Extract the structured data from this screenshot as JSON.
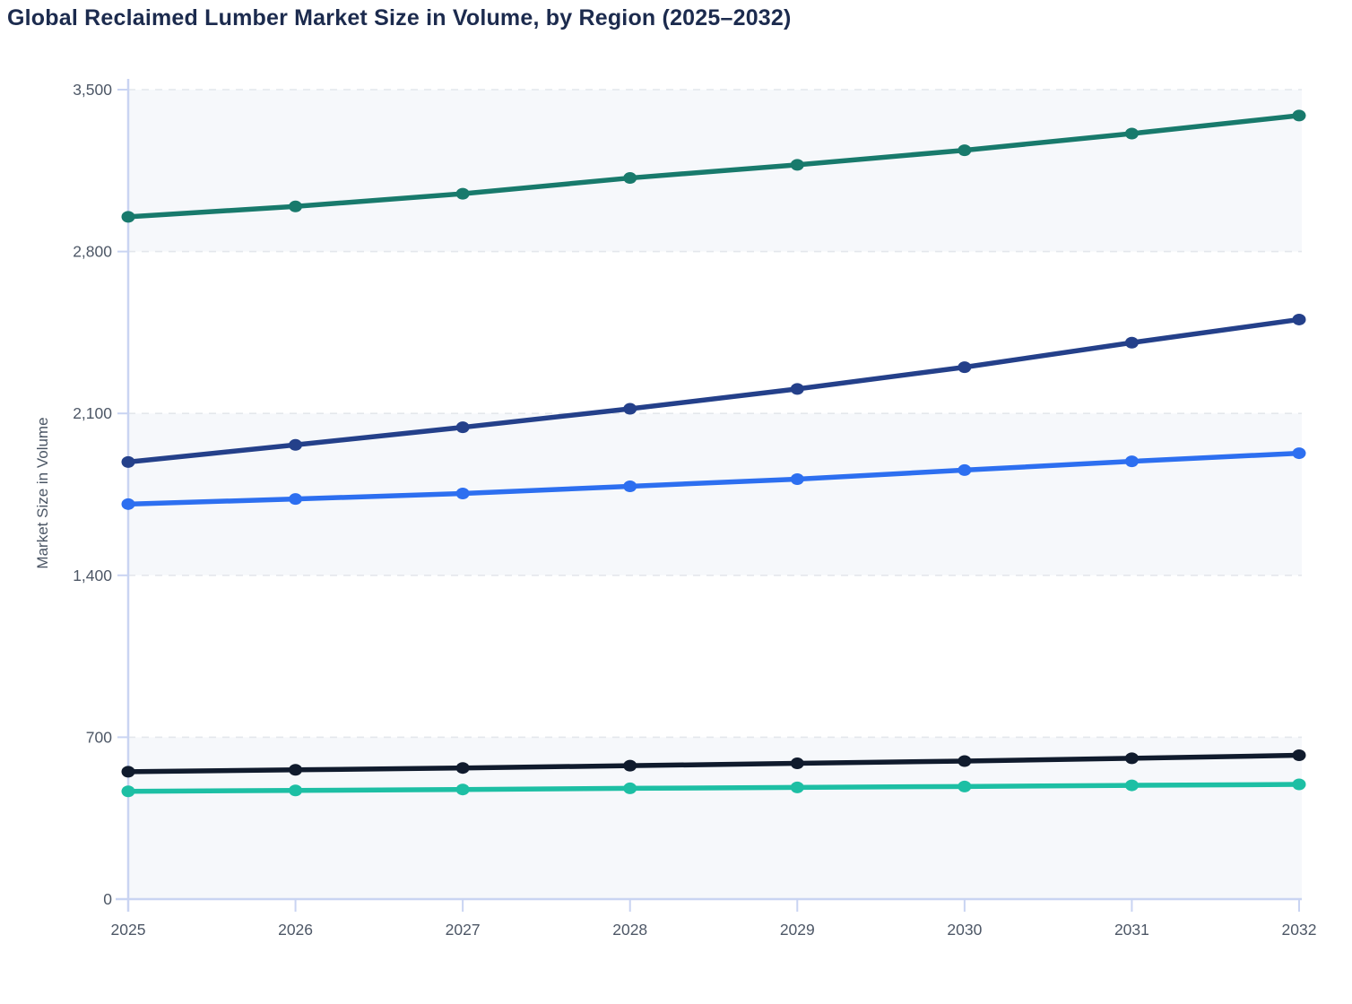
{
  "chart_data": {
    "type": "line",
    "title": "Global Reclaimed Lumber Market Size in Volume, by Region (2025–2032)",
    "xlabel": "",
    "ylabel": "Market Size in Volume",
    "x": [
      "2025",
      "2026",
      "2027",
      "2028",
      "2029",
      "2030",
      "2031",
      "2032"
    ],
    "ylim": [
      0,
      3500
    ],
    "y_tick_step": 700,
    "y_tick_labels": [
      "0",
      "700",
      "1,400",
      "2,100",
      "2,800",
      "3,500"
    ],
    "grid": "dashed-horizontal",
    "legend": "none",
    "series": [
      {
        "name": "teal",
        "color": "#187a6c",
        "values": [
          2950,
          2995,
          3050,
          3118,
          3175,
          3238,
          3310,
          3388
        ]
      },
      {
        "name": "navy",
        "color": "#24408a",
        "values": [
          1890,
          1964,
          2040,
          2120,
          2206,
          2300,
          2406,
          2506
        ]
      },
      {
        "name": "blue",
        "color": "#2d6ff0",
        "values": [
          1708,
          1730,
          1754,
          1785,
          1816,
          1855,
          1893,
          1928
        ]
      },
      {
        "name": "dark-navy",
        "color": "#101b2d",
        "values": [
          551,
          559,
          567,
          577,
          587,
          597,
          609,
          622
        ]
      },
      {
        "name": "mint",
        "color": "#1dbfa4",
        "values": [
          466,
          470,
          474,
          479,
          483,
          487,
          492,
          496
        ]
      }
    ]
  },
  "colors": {
    "title_text": "#1c2b4e",
    "tick_text": "#4d5766",
    "axis_line": "#c9d4f2",
    "grid_line": "#e4e7ec",
    "band_fill": "#f6f8fb",
    "background": "#ffffff"
  }
}
